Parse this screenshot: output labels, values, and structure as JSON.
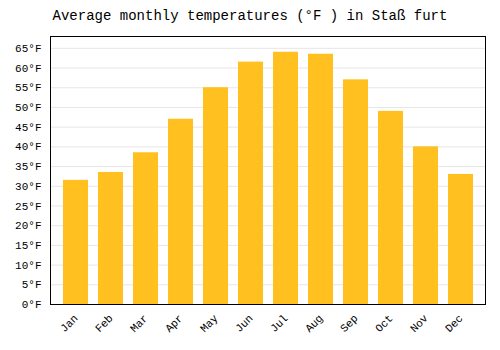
{
  "chart_data": {
    "type": "bar",
    "title": "Average monthly temperatures (°F ) in Staß furt",
    "categories": [
      "Jan",
      "Feb",
      "Mar",
      "Apr",
      "May",
      "Jun",
      "Jul",
      "Aug",
      "Sep",
      "Oct",
      "Nov",
      "Dec"
    ],
    "values": [
      31.5,
      33.5,
      38.5,
      47.0,
      55.0,
      61.5,
      64.0,
      63.5,
      57.0,
      49.0,
      40.0,
      33.0
    ],
    "color": "#FFC020",
    "ylim": [
      0,
      68
    ],
    "yticks": [
      {
        "value": 0,
        "label": "0°F"
      },
      {
        "value": 5,
        "label": "5°F"
      },
      {
        "value": 10,
        "label": "10°F"
      },
      {
        "value": 15,
        "label": "15°F"
      },
      {
        "value": 20,
        "label": "20°F"
      },
      {
        "value": 25,
        "label": "25°F"
      },
      {
        "value": 30,
        "label": "30°F"
      },
      {
        "value": 35,
        "label": "35°F"
      },
      {
        "value": 40,
        "label": "40°F"
      },
      {
        "value": 45,
        "label": "45°F"
      },
      {
        "value": 50,
        "label": "50°F"
      },
      {
        "value": 55,
        "label": "55°F"
      },
      {
        "value": 60,
        "label": "60°F"
      },
      {
        "value": 65,
        "label": "65°F"
      }
    ],
    "grid": true
  }
}
